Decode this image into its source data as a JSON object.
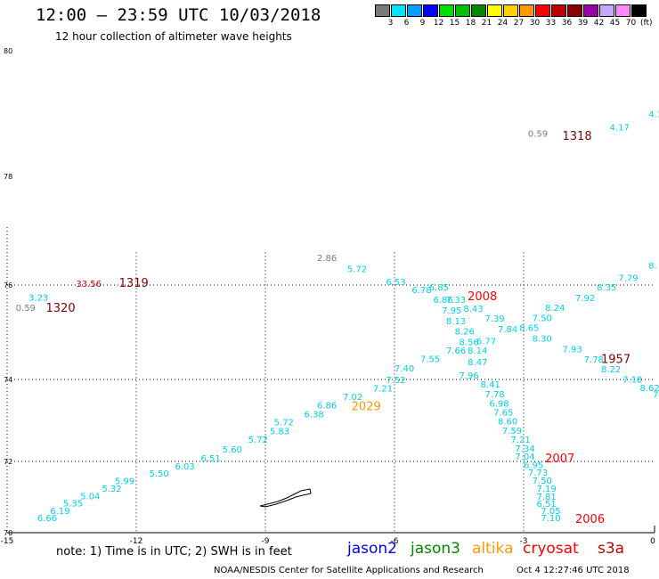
{
  "header": {
    "title": "12:00 – 23:59 UTC 10/03/2018",
    "subtitle": "12 hour collection of altimeter wave heights"
  },
  "legend": {
    "units": "(ft)",
    "levels": [
      {
        "label": "3",
        "color": "#7a7a7a"
      },
      {
        "label": "6",
        "color": "#00e5ff"
      },
      {
        "label": "9",
        "color": "#00a0ff"
      },
      {
        "label": "12",
        "color": "#0000ff"
      },
      {
        "label": "15",
        "color": "#00e000"
      },
      {
        "label": "18",
        "color": "#00c000"
      },
      {
        "label": "21",
        "color": "#008800"
      },
      {
        "label": "24",
        "color": "#ffff00"
      },
      {
        "label": "27",
        "color": "#ffd000"
      },
      {
        "label": "30",
        "color": "#ff9900"
      },
      {
        "label": "33",
        "color": "#ff0000"
      },
      {
        "label": "36",
        "color": "#c00000"
      },
      {
        "label": "39",
        "color": "#880000"
      },
      {
        "label": "42",
        "color": "#9900aa"
      },
      {
        "label": "45",
        "color": "#c8a8ff"
      },
      {
        "label": "70",
        "color": "#ff88ff"
      },
      {
        "label": "",
        "color": "#000000"
      }
    ]
  },
  "axes": {
    "x_ticks": [
      "-15",
      "-12",
      "-9",
      "-6",
      "-3",
      "0"
    ],
    "y_ticks": [
      "80",
      "78",
      "76",
      "74",
      "72",
      "70"
    ]
  },
  "observations": [
    {
      "v": "0.59",
      "lon": -2.9,
      "lat": 78.63,
      "c": "#7a7a7a"
    },
    {
      "v": "4.17",
      "lon": -1.0,
      "lat": 78.73,
      "c": "#00d0e8"
    },
    {
      "v": "4.1",
      "lon": -0.1,
      "lat": 78.94,
      "c": "#00d0e8"
    },
    {
      "v": "2.86",
      "lon": -7.8,
      "lat": 76.44,
      "c": "#7a7a7a"
    },
    {
      "v": "5.72",
      "lon": -7.1,
      "lat": 76.24,
      "c": "#00d0e8"
    },
    {
      "v": "6.53",
      "lon": -6.2,
      "lat": 76.0,
      "c": "#00d0e8"
    },
    {
      "v": "6.78",
      "lon": -5.6,
      "lat": 75.83,
      "c": "#00d0e8"
    },
    {
      "v": "6.85",
      "lon": -5.2,
      "lat": 75.89,
      "c": "#00d0e8"
    },
    {
      "v": "6.86",
      "lon": -5.1,
      "lat": 75.62,
      "c": "#00d0e8"
    },
    {
      "v": "7.33",
      "lon": -4.8,
      "lat": 75.62,
      "c": "#00d0e8"
    },
    {
      "v": "7.95",
      "lon": -4.9,
      "lat": 75.4,
      "c": "#00d0e8"
    },
    {
      "v": "8.43",
      "lon": -4.4,
      "lat": 75.43,
      "c": "#00d0e8"
    },
    {
      "v": "8.13",
      "lon": -4.8,
      "lat": 75.17,
      "c": "#00d0e8"
    },
    {
      "v": "7.39",
      "lon": -3.9,
      "lat": 75.23,
      "c": "#00d0e8"
    },
    {
      "v": "8.26",
      "lon": -4.6,
      "lat": 74.95,
      "c": "#00d0e8"
    },
    {
      "v": "7.84",
      "lon": -3.6,
      "lat": 75.0,
      "c": "#00d0e8"
    },
    {
      "v": "8.56",
      "lon": -4.5,
      "lat": 74.73,
      "c": "#00d0e8"
    },
    {
      "v": "6.77",
      "lon": -4.1,
      "lat": 74.75,
      "c": "#00d0e8"
    },
    {
      "v": "7.66",
      "lon": -4.8,
      "lat": 74.55,
      "c": "#00d0e8"
    },
    {
      "v": "8.14",
      "lon": -4.3,
      "lat": 74.55,
      "c": "#00d0e8"
    },
    {
      "v": "7.55",
      "lon": -5.4,
      "lat": 74.37,
      "c": "#00d0e8"
    },
    {
      "v": "8.47",
      "lon": -4.3,
      "lat": 74.3,
      "c": "#00d0e8"
    },
    {
      "v": "7.40",
      "lon": -6.0,
      "lat": 74.17,
      "c": "#00d0e8"
    },
    {
      "v": "7.96",
      "lon": -4.5,
      "lat": 74.02,
      "c": "#00d0e8"
    },
    {
      "v": "7.52",
      "lon": -6.2,
      "lat": 73.91,
      "c": "#00d0e8"
    },
    {
      "v": "8.41",
      "lon": -4.0,
      "lat": 73.8,
      "c": "#00d0e8"
    },
    {
      "v": "7.21",
      "lon": -6.5,
      "lat": 73.71,
      "c": "#00d0e8"
    },
    {
      "v": "7.78",
      "lon": -3.9,
      "lat": 73.57,
      "c": "#00d0e8"
    },
    {
      "v": "7.02",
      "lon": -7.2,
      "lat": 73.5,
      "c": "#00d0e8"
    },
    {
      "v": "6.98",
      "lon": -3.8,
      "lat": 73.34,
      "c": "#00d0e8"
    },
    {
      "v": "6.86",
      "lon": -7.8,
      "lat": 73.29,
      "c": "#00d0e8"
    },
    {
      "v": "7.65",
      "lon": -3.7,
      "lat": 73.12,
      "c": "#00d0e8"
    },
    {
      "v": "6.38",
      "lon": -8.1,
      "lat": 73.08,
      "c": "#00d0e8"
    },
    {
      "v": "8.60",
      "lon": -3.6,
      "lat": 72.9,
      "c": "#00d0e8"
    },
    {
      "v": "5.72",
      "lon": -8.8,
      "lat": 72.88,
      "c": "#00d0e8"
    },
    {
      "v": "7.59",
      "lon": -3.5,
      "lat": 72.67,
      "c": "#00d0e8"
    },
    {
      "v": "5.83",
      "lon": -8.9,
      "lat": 72.66,
      "c": "#00d0e8"
    },
    {
      "v": "7.21",
      "lon": -3.3,
      "lat": 72.46,
      "c": "#00d0e8"
    },
    {
      "v": "5.72",
      "lon": -9.4,
      "lat": 72.46,
      "c": "#00d0e8"
    },
    {
      "v": "7.34",
      "lon": -3.2,
      "lat": 72.24,
      "c": "#00d0e8"
    },
    {
      "v": "5.60",
      "lon": -10.0,
      "lat": 72.22,
      "c": "#00d0e8"
    },
    {
      "v": "7.04",
      "lon": -3.2,
      "lat": 72.04,
      "c": "#00d0e8"
    },
    {
      "v": "6.51",
      "lon": -10.5,
      "lat": 72.0,
      "c": "#00d0e8"
    },
    {
      "v": "6.95",
      "lon": -3.0,
      "lat": 71.81,
      "c": "#00d0e8"
    },
    {
      "v": "6.03",
      "lon": -11.1,
      "lat": 71.78,
      "c": "#00d0e8"
    },
    {
      "v": "7.73",
      "lon": -2.9,
      "lat": 71.6,
      "c": "#00d0e8"
    },
    {
      "v": "5.50",
      "lon": -11.7,
      "lat": 71.57,
      "c": "#00d0e8"
    },
    {
      "v": "7.50",
      "lon": -2.8,
      "lat": 71.38,
      "c": "#00d0e8"
    },
    {
      "v": "5.99",
      "lon": -12.5,
      "lat": 71.36,
      "c": "#00d0e8"
    },
    {
      "v": "7.19",
      "lon": -2.7,
      "lat": 71.15,
      "c": "#00d0e8"
    },
    {
      "v": "5.32",
      "lon": -12.8,
      "lat": 71.15,
      "c": "#00d0e8"
    },
    {
      "v": "7.81",
      "lon": -2.7,
      "lat": 70.93,
      "c": "#00d0e8"
    },
    {
      "v": "5.04",
      "lon": -13.3,
      "lat": 70.94,
      "c": "#00d0e8"
    },
    {
      "v": "6.51",
      "lon": -2.7,
      "lat": 70.72,
      "c": "#00d0e8"
    },
    {
      "v": "5.35",
      "lon": -13.7,
      "lat": 70.74,
      "c": "#00d0e8"
    },
    {
      "v": "7.05",
      "lon": -2.6,
      "lat": 70.52,
      "c": "#00d0e8"
    },
    {
      "v": "6.19",
      "lon": -14.0,
      "lat": 70.53,
      "c": "#00d0e8"
    },
    {
      "v": "7.10",
      "lon": -2.6,
      "lat": 70.32,
      "c": "#00d0e8"
    },
    {
      "v": "6.66",
      "lon": -14.3,
      "lat": 70.32,
      "c": "#00d0e8"
    },
    {
      "v": "7.50",
      "lon": -2.8,
      "lat": 75.24,
      "c": "#00d0e8"
    },
    {
      "v": "8.65",
      "lon": -3.1,
      "lat": 75.03,
      "c": "#00d0e8"
    },
    {
      "v": "8.30",
      "lon": -2.8,
      "lat": 74.8,
      "c": "#00d0e8"
    },
    {
      "v": "7.93",
      "lon": -2.1,
      "lat": 74.58,
      "c": "#00d0e8"
    },
    {
      "v": "7.78",
      "lon": -1.6,
      "lat": 74.36,
      "c": "#00d0e8"
    },
    {
      "v": "8.22",
      "lon": -1.2,
      "lat": 74.15,
      "c": "#00d0e8"
    },
    {
      "v": "7.18",
      "lon": -0.7,
      "lat": 73.92,
      "c": "#00d0e8"
    },
    {
      "v": "8.62",
      "lon": -0.3,
      "lat": 73.72,
      "c": "#00d0e8"
    },
    {
      "v": "7",
      "lon": 0.0,
      "lat": 73.55,
      "c": "#00d0e8"
    },
    {
      "v": "8.24",
      "lon": -2.5,
      "lat": 75.45,
      "c": "#00d0e8"
    },
    {
      "v": "7.92",
      "lon": -1.8,
      "lat": 75.66,
      "c": "#00d0e8"
    },
    {
      "v": "8.35",
      "lon": -1.3,
      "lat": 75.89,
      "c": "#00d0e8"
    },
    {
      "v": "7.79",
      "lon": -0.8,
      "lat": 76.07,
      "c": "#00d0e8"
    },
    {
      "v": "8.",
      "lon": -0.1,
      "lat": 76.3,
      "c": "#00d0e8"
    },
    {
      "v": "3.23",
      "lon": -14.5,
      "lat": 75.67,
      "c": "#00d0e8"
    },
    {
      "v": "0.59",
      "lon": -14.8,
      "lat": 75.45,
      "c": "#7a7a7a"
    },
    {
      "v": "33.56",
      "lon": -13.4,
      "lat": 75.96,
      "c": "#c00000"
    }
  ],
  "track_ids": [
    {
      "id": "1318",
      "lon": -2.1,
      "lat": 78.58,
      "c": "#880000"
    },
    {
      "id": "1319",
      "lon": -12.4,
      "lat": 75.96,
      "c": "#880000"
    },
    {
      "id": "1320",
      "lon": -14.1,
      "lat": 75.43,
      "c": "#880000"
    },
    {
      "id": "2008",
      "lon": -4.3,
      "lat": 75.68,
      "c": "#ff0000"
    },
    {
      "id": "1957",
      "lon": -1.2,
      "lat": 74.35,
      "c": "#880000"
    },
    {
      "id": "2029",
      "lon": -7.0,
      "lat": 73.25,
      "c": "#ff9900"
    },
    {
      "id": "2007",
      "lon": -2.5,
      "lat": 71.98,
      "c": "#ff0000"
    },
    {
      "id": "2006",
      "lon": -1.8,
      "lat": 70.28,
      "c": "#ff0000"
    }
  ],
  "note": "note:  1) Time is in UTC;  2) SWH is in feet",
  "satellites": [
    {
      "name": "jason2",
      "color": "#0000ff"
    },
    {
      "name": "jason3",
      "color": "#008800"
    },
    {
      "name": "altika",
      "color": "#ff9900"
    },
    {
      "name": "cryosat",
      "color": "#ff0000"
    },
    {
      "name": "s3a",
      "color": "#c00000"
    }
  ],
  "footer": {
    "credit": "NOAA/NESDIS Center for Satellite Applications and Research",
    "timestamp": "Oct  4 12:27:46 UTC 2018"
  }
}
